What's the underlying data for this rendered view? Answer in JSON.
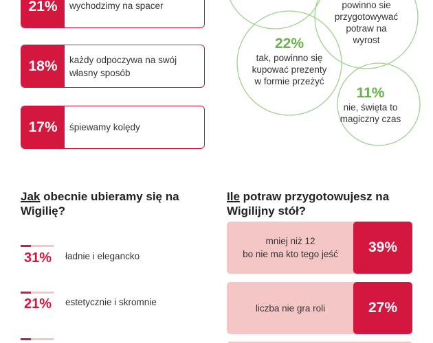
{
  "activities": [
    {
      "value": "21%",
      "lines": [
        "wychodzimy na spacer"
      ]
    },
    {
      "value": "18%",
      "lines": [
        "każdy odpoczywa na swój",
        "własny sposób"
      ]
    },
    {
      "value": "17%",
      "lines": [
        "śpiewamy kolędy"
      ]
    }
  ],
  "opinions": [
    {
      "lines": [
        "powinno sie",
        "przygotowywać",
        "potraw na",
        "wyrost"
      ]
    },
    {
      "value": "22%",
      "lines": [
        "tak, powinno się",
        "kupować prezenty",
        "w formie przeżyć"
      ]
    },
    {
      "value": "11%",
      "lines": [
        "nie, święta to",
        "magiczny czas"
      ]
    }
  ],
  "clothing": {
    "heading": {
      "underlined": "Jak",
      "rest": " obecnie ubieramy się na",
      "line2": "Wigilię?"
    },
    "items": [
      {
        "value": "31%",
        "label": "ładnie i elegancko"
      },
      {
        "value": "21%",
        "label": "estetycznie i skromnie"
      }
    ]
  },
  "dishes": {
    "heading": {
      "underlined": "Ile",
      "rest": " potraw przygotowujesz na",
      "line2": "Wigilijny stół?"
    },
    "items": [
      {
        "value": "39%",
        "lines": [
          "mniej niż 12",
          "bo nie ma kto tego jeść"
        ]
      },
      {
        "value": "27%",
        "lines": [
          "liczba nie gra roli"
        ]
      }
    ]
  }
}
